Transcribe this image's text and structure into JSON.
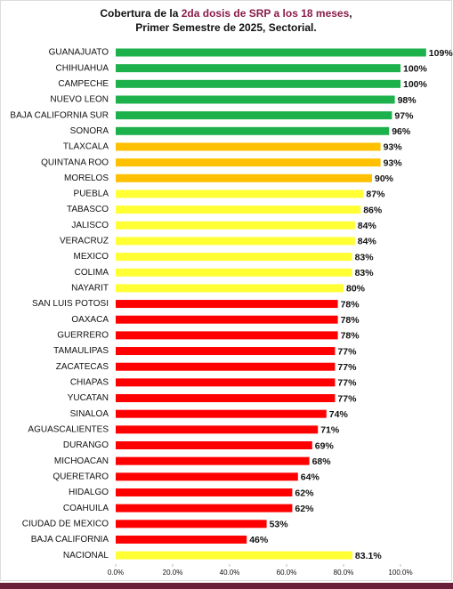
{
  "chart_data": {
    "type": "hbar",
    "title": [
      "Cobertura de la ",
      "2da dosis de SRP a los 18 meses",
      ",",
      "Primer Semestre de 2025, Sectorial."
    ],
    "categories": [
      "GUANAJUATO",
      "CHIHUAHUA",
      "CAMPECHE",
      "NUEVO LEON",
      "BAJA CALIFORNIA SUR",
      "SONORA",
      "TLAXCALA",
      "QUINTANA ROO",
      "MORELOS",
      "PUEBLA",
      "TABASCO",
      "JALISCO",
      "VERACRUZ",
      "MEXICO",
      "COLIMA",
      "NAYARIT",
      "SAN LUIS POTOSI",
      "OAXACA",
      "GUERRERO",
      "TAMAULIPAS",
      "ZACATECAS",
      "CHIAPAS",
      "YUCATAN",
      "SINALOA",
      "AGUASCALIENTES",
      "DURANGO",
      "MICHOACAN",
      "QUERETARO",
      "HIDALGO",
      "COAHUILA",
      "CIUDAD DE MEXICO",
      "BAJA CALIFORNIA",
      "NACIONAL"
    ],
    "values": [
      109,
      100,
      100,
      98,
      97,
      96,
      93,
      93,
      90,
      87,
      86,
      84,
      84,
      83,
      83,
      80,
      78,
      78,
      78,
      77,
      77,
      77,
      77,
      74,
      71,
      69,
      68,
      64,
      62,
      62,
      53,
      46,
      83.1
    ],
    "value_labels": [
      "109%",
      "100%",
      "100%",
      "98%",
      "97%",
      "96%",
      "93%",
      "93%",
      "90%",
      "87%",
      "86%",
      "84%",
      "84%",
      "83%",
      "83%",
      "80%",
      "78%",
      "78%",
      "78%",
      "77%",
      "77%",
      "77%",
      "77%",
      "74%",
      "71%",
      "69%",
      "68%",
      "64%",
      "62%",
      "62%",
      "53%",
      "46%",
      "83.1%"
    ],
    "colors": [
      "#1db14b",
      "#1db14b",
      "#1db14b",
      "#1db14b",
      "#1db14b",
      "#1db14b",
      "#ffc000",
      "#ffc000",
      "#ffc000",
      "#ffff33",
      "#ffff33",
      "#ffff33",
      "#ffff33",
      "#ffff33",
      "#ffff33",
      "#ffff33",
      "#ff0000",
      "#ff0000",
      "#ff0000",
      "#ff0000",
      "#ff0000",
      "#ff0000",
      "#ff0000",
      "#ff0000",
      "#ff0000",
      "#ff0000",
      "#ff0000",
      "#ff0000",
      "#ff0000",
      "#ff0000",
      "#ff0000",
      "#ff0000",
      "#ffff33"
    ],
    "xlim": [
      0,
      115
    ],
    "xticks": [
      {
        "value": 0,
        "label": "0.0%"
      },
      {
        "value": 20,
        "label": "20.0%"
      },
      {
        "value": 40,
        "label": "40.0%"
      },
      {
        "value": 60,
        "label": "60.0%"
      },
      {
        "value": 80,
        "label": "80.0%"
      },
      {
        "value": 100,
        "label": "100.0%"
      }
    ]
  }
}
